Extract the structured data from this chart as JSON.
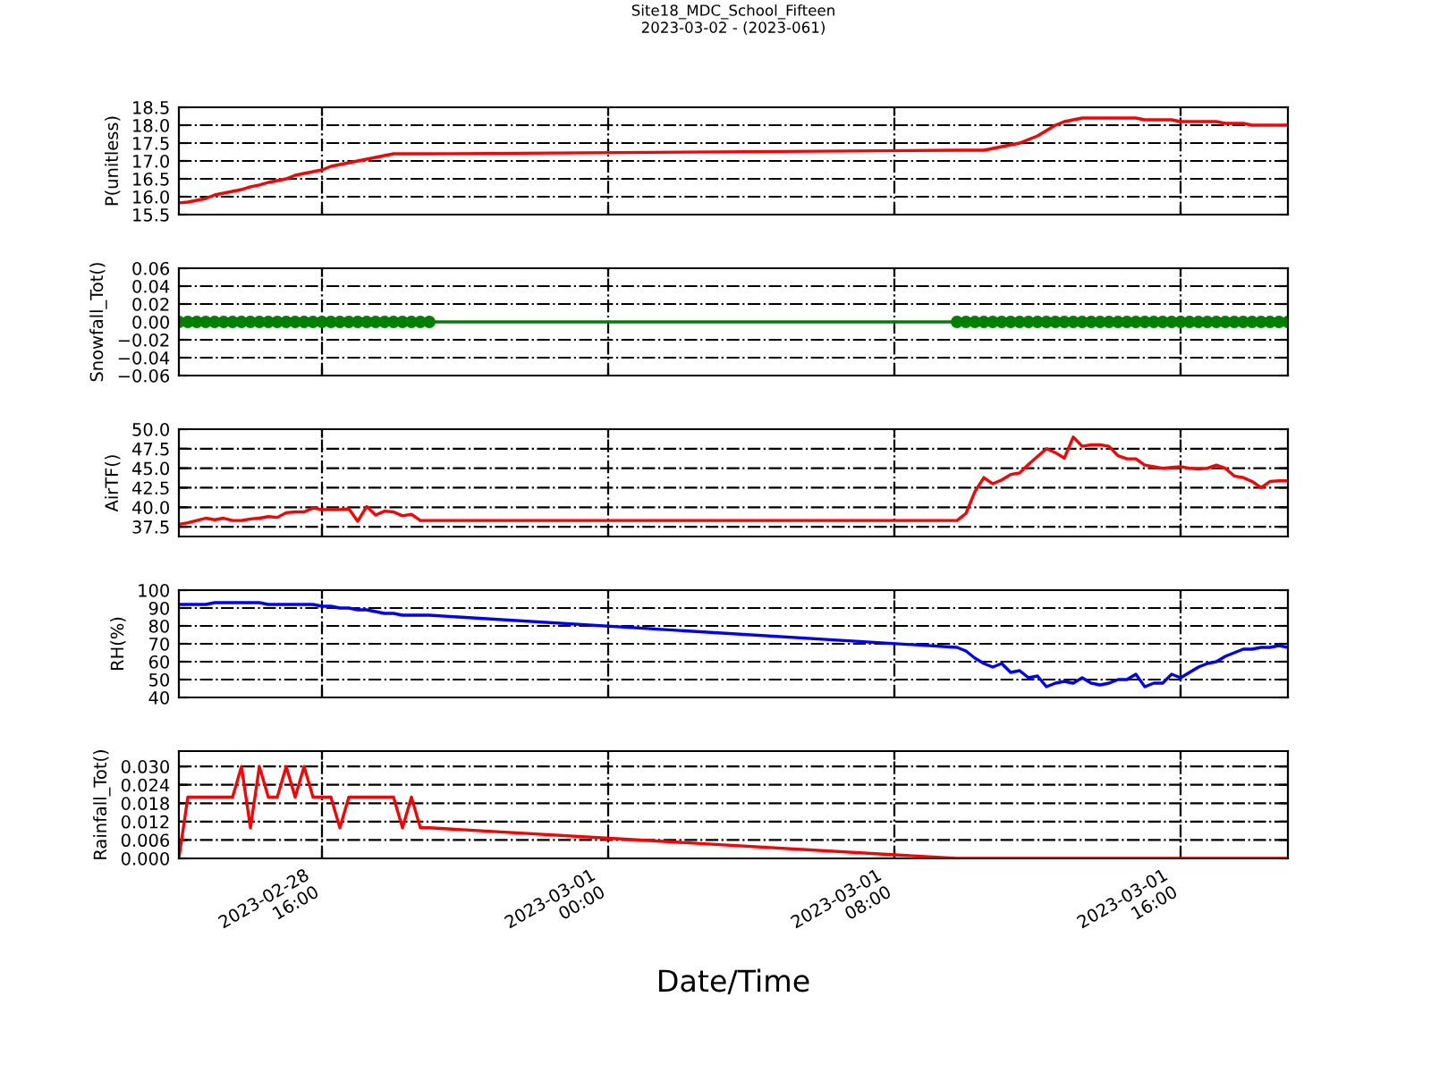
{
  "chart_data": [
    {
      "type": "line",
      "title": "Site18_MDC_School_Fifteen\n2023-03-02 - (2023-061)",
      "ylabel": "P(unitless)",
      "grid": true,
      "tick_labels": "y",
      "ylim": [
        15.5,
        18.5
      ],
      "yticks": [
        {
          "value": 15.5,
          "label": "15.5"
        },
        {
          "value": 16.0,
          "label": "16.0"
        },
        {
          "value": 16.5,
          "label": "16.5"
        },
        {
          "value": 17.0,
          "label": "17.0"
        },
        {
          "value": 17.5,
          "label": "17.5"
        },
        {
          "value": 18.0,
          "label": "18.0"
        },
        {
          "value": 18.5,
          "label": "18.5"
        }
      ],
      "xlim": [
        "2023-02-28T12:00",
        "2023-03-01T19:00"
      ],
      "xticks": [
        {
          "value": "2023-02-28T16:00",
          "label": null
        },
        {
          "value": "2023-03-01T00:00",
          "label": null
        },
        {
          "value": "2023-03-01T08:00",
          "label": null
        },
        {
          "value": "2023-03-01T16:00",
          "label": null
        }
      ],
      "x": [
        "2023-02-28T12:00",
        "2023-02-28T12:15",
        "2023-02-28T12:30",
        "2023-02-28T12:45",
        "2023-02-28T13:00",
        "2023-02-28T13:15",
        "2023-02-28T13:30",
        "2023-02-28T13:45",
        "2023-02-28T14:00",
        "2023-02-28T14:15",
        "2023-02-28T14:30",
        "2023-02-28T14:45",
        "2023-02-28T15:00",
        "2023-02-28T15:15",
        "2023-02-28T15:30",
        "2023-02-28T15:45",
        "2023-02-28T16:00",
        "2023-02-28T16:15",
        "2023-02-28T16:30",
        "2023-02-28T16:45",
        "2023-02-28T17:00",
        "2023-02-28T17:15",
        "2023-02-28T17:30",
        "2023-02-28T17:45",
        "2023-02-28T18:00",
        "2023-02-28T18:15",
        "2023-02-28T18:30",
        "2023-02-28T18:45",
        "2023-02-28T19:00",
        "2023-03-01T09:45",
        "2023-03-01T10:00",
        "2023-03-01T10:15",
        "2023-03-01T10:30",
        "2023-03-01T10:45",
        "2023-03-01T11:00",
        "2023-03-01T11:15",
        "2023-03-01T11:30",
        "2023-03-01T11:45",
        "2023-03-01T12:00",
        "2023-03-01T12:15",
        "2023-03-01T12:30",
        "2023-03-01T12:45",
        "2023-03-01T13:00",
        "2023-03-01T13:15",
        "2023-03-01T13:30",
        "2023-03-01T13:45",
        "2023-03-01T14:00",
        "2023-03-01T14:15",
        "2023-03-01T14:30",
        "2023-03-01T14:45",
        "2023-03-01T15:00",
        "2023-03-01T15:15",
        "2023-03-01T15:30",
        "2023-03-01T15:45",
        "2023-03-01T16:00",
        "2023-03-01T16:15",
        "2023-03-01T16:30",
        "2023-03-01T16:45",
        "2023-03-01T17:00",
        "2023-03-01T17:15",
        "2023-03-01T17:30",
        "2023-03-01T17:45",
        "2023-03-01T18:00",
        "2023-03-01T18:15",
        "2023-03-01T18:30",
        "2023-03-01T18:45",
        "2023-03-01T19:00"
      ],
      "series": [
        {
          "color": "#ff0000",
          "values": [
            15.83,
            15.85,
            15.9,
            15.95,
            16.05,
            16.1,
            16.15,
            16.2,
            16.28,
            16.33,
            16.4,
            16.45,
            16.5,
            16.6,
            16.65,
            16.7,
            16.75,
            16.85,
            16.9,
            16.95,
            17.0,
            17.05,
            17.1,
            17.15,
            17.2,
            17.2,
            17.2,
            17.2,
            17.2,
            17.3,
            17.3,
            17.3,
            17.3,
            17.35,
            17.4,
            17.45,
            17.5,
            17.6,
            17.7,
            17.85,
            18.0,
            18.1,
            18.15,
            18.2,
            18.2,
            18.2,
            18.2,
            18.2,
            18.2,
            18.2,
            18.15,
            18.15,
            18.15,
            18.15,
            18.1,
            18.1,
            18.1,
            18.1,
            18.1,
            18.05,
            18.05,
            18.05,
            18.0,
            18.0,
            18.0,
            18.0,
            18.0
          ]
        }
      ]
    },
    {
      "type": "line",
      "ylabel": "Snowfall_Tot()",
      "grid": true,
      "tick_labels": "y",
      "marker": "circle",
      "ylim": [
        -0.06,
        0.06
      ],
      "yticks": [
        {
          "value": -0.06,
          "label": "−0.06"
        },
        {
          "value": -0.04,
          "label": "−0.04"
        },
        {
          "value": -0.02,
          "label": "−0.02"
        },
        {
          "value": 0.0,
          "label": "0.00"
        },
        {
          "value": 0.02,
          "label": "0.02"
        },
        {
          "value": 0.04,
          "label": "0.04"
        },
        {
          "value": 0.06,
          "label": "0.06"
        }
      ],
      "xlim": [
        "2023-02-28T12:00",
        "2023-03-01T19:00"
      ],
      "xticks": [
        {
          "value": "2023-02-28T16:00",
          "label": null
        },
        {
          "value": "2023-03-01T00:00",
          "label": null
        },
        {
          "value": "2023-03-01T08:00",
          "label": null
        },
        {
          "value": "2023-03-01T16:00",
          "label": null
        }
      ],
      "x": [
        "2023-02-28T12:00",
        "2023-02-28T12:15",
        "2023-02-28T12:30",
        "2023-02-28T12:45",
        "2023-02-28T13:00",
        "2023-02-28T13:15",
        "2023-02-28T13:30",
        "2023-02-28T13:45",
        "2023-02-28T14:00",
        "2023-02-28T14:15",
        "2023-02-28T14:30",
        "2023-02-28T14:45",
        "2023-02-28T15:00",
        "2023-02-28T15:15",
        "2023-02-28T15:30",
        "2023-02-28T15:45",
        "2023-02-28T16:00",
        "2023-02-28T16:15",
        "2023-02-28T16:30",
        "2023-02-28T16:45",
        "2023-02-28T17:00",
        "2023-02-28T17:15",
        "2023-02-28T17:30",
        "2023-02-28T17:45",
        "2023-02-28T18:00",
        "2023-02-28T18:15",
        "2023-02-28T18:30",
        "2023-02-28T18:45",
        "2023-02-28T19:00",
        "2023-03-01T09:45",
        "2023-03-01T10:00",
        "2023-03-01T10:15",
        "2023-03-01T10:30",
        "2023-03-01T10:45",
        "2023-03-01T11:00",
        "2023-03-01T11:15",
        "2023-03-01T11:30",
        "2023-03-01T11:45",
        "2023-03-01T12:00",
        "2023-03-01T12:15",
        "2023-03-01T12:30",
        "2023-03-01T12:45",
        "2023-03-01T13:00",
        "2023-03-01T13:15",
        "2023-03-01T13:30",
        "2023-03-01T13:45",
        "2023-03-01T14:00",
        "2023-03-01T14:15",
        "2023-03-01T14:30",
        "2023-03-01T14:45",
        "2023-03-01T15:00",
        "2023-03-01T15:15",
        "2023-03-01T15:30",
        "2023-03-01T15:45",
        "2023-03-01T16:00",
        "2023-03-01T16:15",
        "2023-03-01T16:30",
        "2023-03-01T16:45",
        "2023-03-01T17:00",
        "2023-03-01T17:15",
        "2023-03-01T17:30",
        "2023-03-01T17:45",
        "2023-03-01T18:00",
        "2023-03-01T18:15",
        "2023-03-01T18:30",
        "2023-03-01T18:45",
        "2023-03-01T19:00"
      ],
      "series": [
        {
          "color": "#008000",
          "values": [
            0,
            0,
            0,
            0,
            0,
            0,
            0,
            0,
            0,
            0,
            0,
            0,
            0,
            0,
            0,
            0,
            0,
            0,
            0,
            0,
            0,
            0,
            0,
            0,
            0,
            0,
            0,
            0,
            0,
            0,
            0,
            0,
            0,
            0,
            0,
            0,
            0,
            0,
            0,
            0,
            0,
            0,
            0,
            0,
            0,
            0,
            0,
            0,
            0,
            0,
            0,
            0,
            0,
            0,
            0,
            0,
            0,
            0,
            0,
            0,
            0,
            0,
            0,
            0,
            0,
            0,
            0
          ]
        }
      ]
    },
    {
      "type": "line",
      "ylabel": "AirTF()",
      "grid": true,
      "tick_labels": "y",
      "ylim": [
        36.25,
        50.0
      ],
      "yticks": [
        {
          "value": 37.5,
          "label": "37.5"
        },
        {
          "value": 40.0,
          "label": "40.0"
        },
        {
          "value": 42.5,
          "label": "42.5"
        },
        {
          "value": 45.0,
          "label": "45.0"
        },
        {
          "value": 47.5,
          "label": "47.5"
        },
        {
          "value": 50.0,
          "label": "50.0"
        }
      ],
      "xlim": [
        "2023-02-28T12:00",
        "2023-03-01T19:00"
      ],
      "xticks": [
        {
          "value": "2023-02-28T16:00",
          "label": null
        },
        {
          "value": "2023-03-01T00:00",
          "label": null
        },
        {
          "value": "2023-03-01T08:00",
          "label": null
        },
        {
          "value": "2023-03-01T16:00",
          "label": null
        }
      ],
      "x": [
        "2023-02-28T12:00",
        "2023-02-28T12:15",
        "2023-02-28T12:30",
        "2023-02-28T12:45",
        "2023-02-28T13:00",
        "2023-02-28T13:15",
        "2023-02-28T13:30",
        "2023-02-28T13:45",
        "2023-02-28T14:00",
        "2023-02-28T14:15",
        "2023-02-28T14:30",
        "2023-02-28T14:45",
        "2023-02-28T15:00",
        "2023-02-28T15:15",
        "2023-02-28T15:30",
        "2023-02-28T15:45",
        "2023-02-28T16:00",
        "2023-02-28T16:15",
        "2023-02-28T16:30",
        "2023-02-28T16:45",
        "2023-02-28T17:00",
        "2023-02-28T17:15",
        "2023-02-28T17:30",
        "2023-02-28T17:45",
        "2023-02-28T18:00",
        "2023-02-28T18:15",
        "2023-02-28T18:30",
        "2023-02-28T18:45",
        "2023-02-28T19:00",
        "2023-03-01T09:45",
        "2023-03-01T10:00",
        "2023-03-01T10:15",
        "2023-03-01T10:30",
        "2023-03-01T10:45",
        "2023-03-01T11:00",
        "2023-03-01T11:15",
        "2023-03-01T11:30",
        "2023-03-01T11:45",
        "2023-03-01T12:00",
        "2023-03-01T12:15",
        "2023-03-01T12:30",
        "2023-03-01T12:45",
        "2023-03-01T13:00",
        "2023-03-01T13:15",
        "2023-03-01T13:30",
        "2023-03-01T13:45",
        "2023-03-01T14:00",
        "2023-03-01T14:15",
        "2023-03-01T14:30",
        "2023-03-01T14:45",
        "2023-03-01T15:00",
        "2023-03-01T15:15",
        "2023-03-01T15:30",
        "2023-03-01T15:45",
        "2023-03-01T16:00",
        "2023-03-01T16:15",
        "2023-03-01T16:30",
        "2023-03-01T16:45",
        "2023-03-01T17:00",
        "2023-03-01T17:15",
        "2023-03-01T17:30",
        "2023-03-01T17:45",
        "2023-03-01T18:00",
        "2023-03-01T18:15",
        "2023-03-01T18:30",
        "2023-03-01T18:45",
        "2023-03-01T19:00"
      ],
      "series": [
        {
          "color": "#ff0000",
          "values": [
            37.8,
            38.0,
            38.3,
            38.6,
            38.4,
            38.6,
            38.3,
            38.3,
            38.5,
            38.6,
            38.8,
            38.7,
            39.3,
            39.4,
            39.4,
            39.9,
            39.7,
            39.7,
            39.7,
            39.8,
            38.2,
            40.1,
            39.0,
            39.5,
            39.4,
            38.9,
            39.1,
            38.3,
            38.3,
            38.3,
            39.2,
            42.0,
            43.8,
            43.0,
            43.5,
            44.2,
            44.4,
            45.5,
            46.5,
            47.5,
            47.0,
            46.3,
            49.0,
            47.8,
            48.0,
            48.0,
            47.8,
            46.6,
            46.2,
            46.2,
            45.4,
            45.2,
            45.0,
            45.1,
            45.2,
            45.0,
            44.9,
            45.0,
            45.4,
            45.0,
            44.0,
            43.8,
            43.3,
            42.5,
            43.3,
            43.4,
            43.4
          ]
        }
      ]
    },
    {
      "type": "line",
      "ylabel": "RH(%)",
      "grid": true,
      "tick_labels": "y",
      "ylim": [
        40,
        100
      ],
      "yticks": [
        40,
        50,
        60,
        70,
        80,
        90,
        100
      ],
      "xlim": [
        "2023-02-28T12:00",
        "2023-03-01T19:00"
      ],
      "xticks": [
        {
          "value": "2023-02-28T16:00",
          "label": null
        },
        {
          "value": "2023-03-01T00:00",
          "label": null
        },
        {
          "value": "2023-03-01T08:00",
          "label": null
        },
        {
          "value": "2023-03-01T16:00",
          "label": null
        }
      ],
      "x": [
        "2023-02-28T12:00",
        "2023-02-28T12:15",
        "2023-02-28T12:30",
        "2023-02-28T12:45",
        "2023-02-28T13:00",
        "2023-02-28T13:15",
        "2023-02-28T13:30",
        "2023-02-28T13:45",
        "2023-02-28T14:00",
        "2023-02-28T14:15",
        "2023-02-28T14:30",
        "2023-02-28T14:45",
        "2023-02-28T15:00",
        "2023-02-28T15:15",
        "2023-02-28T15:30",
        "2023-02-28T15:45",
        "2023-02-28T16:00",
        "2023-02-28T16:15",
        "2023-02-28T16:30",
        "2023-02-28T16:45",
        "2023-02-28T17:00",
        "2023-02-28T17:15",
        "2023-02-28T17:30",
        "2023-02-28T17:45",
        "2023-02-28T18:00",
        "2023-02-28T18:15",
        "2023-02-28T18:30",
        "2023-02-28T18:45",
        "2023-02-28T19:00",
        "2023-03-01T09:45",
        "2023-03-01T10:00",
        "2023-03-01T10:15",
        "2023-03-01T10:30",
        "2023-03-01T10:45",
        "2023-03-01T11:00",
        "2023-03-01T11:15",
        "2023-03-01T11:30",
        "2023-03-01T11:45",
        "2023-03-01T12:00",
        "2023-03-01T12:15",
        "2023-03-01T12:30",
        "2023-03-01T12:45",
        "2023-03-01T13:00",
        "2023-03-01T13:15",
        "2023-03-01T13:30",
        "2023-03-01T13:45",
        "2023-03-01T14:00",
        "2023-03-01T14:15",
        "2023-03-01T14:30",
        "2023-03-01T14:45",
        "2023-03-01T15:00",
        "2023-03-01T15:15",
        "2023-03-01T15:30",
        "2023-03-01T15:45",
        "2023-03-01T16:00",
        "2023-03-01T16:15",
        "2023-03-01T16:30",
        "2023-03-01T16:45",
        "2023-03-01T17:00",
        "2023-03-01T17:15",
        "2023-03-01T17:30",
        "2023-03-01T17:45",
        "2023-03-01T18:00",
        "2023-03-01T18:15",
        "2023-03-01T18:30",
        "2023-03-01T18:45",
        "2023-03-01T19:00"
      ],
      "series": [
        {
          "color": "#0000ff",
          "values": [
            92,
            92,
            92,
            92,
            93,
            93,
            93,
            93,
            93,
            93,
            92,
            92,
            92,
            92,
            92,
            92,
            91,
            91,
            90,
            90,
            89,
            89,
            88,
            87,
            87,
            86,
            86,
            86,
            86,
            68,
            66,
            62,
            59,
            57,
            59,
            54,
            55,
            51,
            52,
            46,
            48,
            49,
            48,
            51,
            48,
            47,
            48,
            50,
            50,
            53,
            46,
            48,
            48,
            53,
            51,
            54,
            57,
            59,
            60,
            63,
            65,
            67,
            67,
            68,
            68,
            69,
            68
          ]
        }
      ]
    },
    {
      "type": "line",
      "ylabel": "Rainfall_Tot()",
      "xlabel": "Date/Time",
      "grid": true,
      "ylim": [
        0.0,
        0.035
      ],
      "yticks": [
        {
          "value": 0.0,
          "label": "0.000"
        },
        {
          "value": 0.006,
          "label": "0.006"
        },
        {
          "value": 0.012,
          "label": "0.012"
        },
        {
          "value": 0.018,
          "label": "0.018"
        },
        {
          "value": 0.024,
          "label": "0.024"
        },
        {
          "value": 0.03,
          "label": "0.030"
        }
      ],
      "xlim": [
        "2023-02-28T12:00",
        "2023-03-01T19:00"
      ],
      "xticks": [
        {
          "value": "2023-02-28T16:00",
          "label": "2023-02-28\n16:00"
        },
        {
          "value": "2023-03-01T00:00",
          "label": "2023-03-01\n00:00"
        },
        {
          "value": "2023-03-01T08:00",
          "label": "2023-03-01\n08:00"
        },
        {
          "value": "2023-03-01T16:00",
          "label": "2023-03-01\n16:00"
        }
      ],
      "x": [
        "2023-02-28T12:00",
        "2023-02-28T12:15",
        "2023-02-28T12:30",
        "2023-02-28T12:45",
        "2023-02-28T13:00",
        "2023-02-28T13:15",
        "2023-02-28T13:30",
        "2023-02-28T13:45",
        "2023-02-28T14:00",
        "2023-02-28T14:15",
        "2023-02-28T14:30",
        "2023-02-28T14:45",
        "2023-02-28T15:00",
        "2023-02-28T15:15",
        "2023-02-28T15:30",
        "2023-02-28T15:45",
        "2023-02-28T16:00",
        "2023-02-28T16:15",
        "2023-02-28T16:30",
        "2023-02-28T16:45",
        "2023-02-28T17:00",
        "2023-02-28T17:15",
        "2023-02-28T17:30",
        "2023-02-28T17:45",
        "2023-02-28T18:00",
        "2023-02-28T18:15",
        "2023-02-28T18:30",
        "2023-02-28T18:45",
        "2023-02-28T19:00",
        "2023-03-01T09:45",
        "2023-03-01T10:00",
        "2023-03-01T10:15",
        "2023-03-01T10:30",
        "2023-03-01T10:45",
        "2023-03-01T11:00",
        "2023-03-01T11:15",
        "2023-03-01T11:30",
        "2023-03-01T11:45",
        "2023-03-01T12:00",
        "2023-03-01T12:15",
        "2023-03-01T12:30",
        "2023-03-01T12:45",
        "2023-03-01T13:00",
        "2023-03-01T13:15",
        "2023-03-01T13:30",
        "2023-03-01T13:45",
        "2023-03-01T14:00",
        "2023-03-01T14:15",
        "2023-03-01T14:30",
        "2023-03-01T14:45",
        "2023-03-01T15:00",
        "2023-03-01T15:15",
        "2023-03-01T15:30",
        "2023-03-01T15:45",
        "2023-03-01T16:00",
        "2023-03-01T16:15",
        "2023-03-01T16:30",
        "2023-03-01T16:45",
        "2023-03-01T17:00",
        "2023-03-01T17:15",
        "2023-03-01T17:30",
        "2023-03-01T17:45",
        "2023-03-01T18:00",
        "2023-03-01T18:15",
        "2023-03-01T18:30",
        "2023-03-01T18:45",
        "2023-03-01T19:00"
      ],
      "series": [
        {
          "color": "#ff0000",
          "values": [
            0.0,
            0.02,
            0.02,
            0.02,
            0.02,
            0.02,
            0.02,
            0.03,
            0.01,
            0.03,
            0.02,
            0.02,
            0.03,
            0.02,
            0.03,
            0.02,
            0.02,
            0.02,
            0.01,
            0.02,
            0.02,
            0.02,
            0.02,
            0.02,
            0.02,
            0.01,
            0.02,
            0.01,
            0.01,
            0,
            0,
            0,
            0,
            0,
            0,
            0,
            0,
            0,
            0,
            0,
            0,
            0,
            0,
            0,
            0,
            0,
            0,
            0,
            0,
            0,
            0,
            0,
            0,
            0,
            0,
            0,
            0,
            0,
            0,
            0,
            0,
            0,
            0,
            0,
            0,
            0,
            0
          ]
        }
      ]
    }
  ]
}
